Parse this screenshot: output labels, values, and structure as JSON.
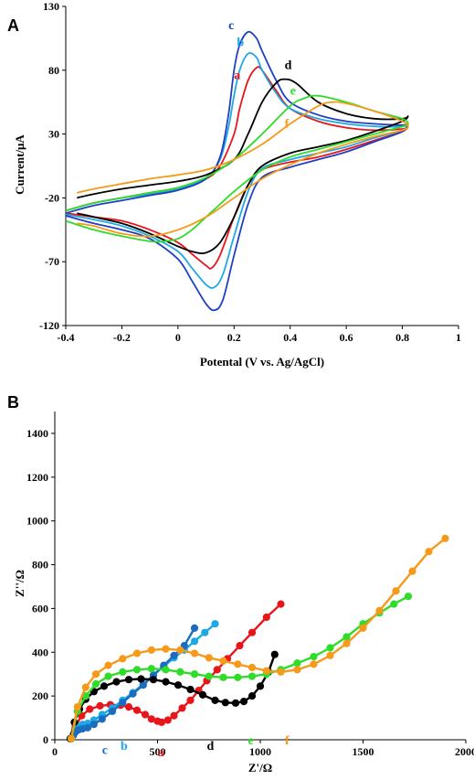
{
  "chart_data": [
    {
      "type": "line",
      "panel": "A",
      "title": "",
      "xlabel": "Potental (V vs. Ag/AgCl)",
      "ylabel": "Current/μA",
      "xlim": [
        -0.4,
        1
      ],
      "ylim": [
        -120,
        130
      ],
      "xticks": [
        -0.4,
        -0.2,
        0,
        0.2,
        0.4,
        0.6,
        0.8,
        1
      ],
      "yticks": [
        -120,
        -70,
        -20,
        30,
        80,
        130
      ],
      "grid": false,
      "legend": "inline curve labels",
      "series": [
        {
          "name": "a",
          "color": "#e8161b",
          "x": [
            -0.4,
            -0.3,
            -0.2,
            -0.1,
            0,
            0.1,
            0.15,
            0.2,
            0.22,
            0.25,
            0.28,
            0.3,
            0.35,
            0.4,
            0.5,
            0.6,
            0.7,
            0.8,
            0.82,
            0.8,
            0.7,
            0.6,
            0.5,
            0.4,
            0.3,
            0.25,
            0.2,
            0.15,
            0.12,
            0.1,
            0.05,
            0,
            -0.1,
            -0.2,
            -0.3,
            -0.4
          ],
          "y": [
            -30,
            -24,
            -20,
            -16,
            -12,
            -5,
            5,
            30,
            50,
            72,
            82,
            80,
            64,
            50,
            40,
            35,
            33,
            34,
            36,
            32,
            25,
            18,
            12,
            8,
            2,
            -10,
            -35,
            -65,
            -75,
            -73,
            -64,
            -55,
            -45,
            -38,
            -35,
            -32
          ]
        },
        {
          "name": "b",
          "color": "#1ea8e4",
          "x": [
            -0.4,
            -0.3,
            -0.2,
            -0.1,
            0,
            0.1,
            0.15,
            0.18,
            0.2,
            0.22,
            0.25,
            0.28,
            0.3,
            0.35,
            0.4,
            0.5,
            0.6,
            0.7,
            0.8,
            0.82,
            0.8,
            0.7,
            0.6,
            0.5,
            0.4,
            0.3,
            0.25,
            0.2,
            0.16,
            0.13,
            0.1,
            0.05,
            0,
            -0.1,
            -0.2,
            -0.3,
            -0.4
          ],
          "y": [
            -30,
            -24,
            -20,
            -17,
            -13,
            -4,
            10,
            35,
            60,
            80,
            93,
            90,
            80,
            62,
            50,
            42,
            38,
            36,
            36,
            38,
            33,
            27,
            20,
            15,
            10,
            3,
            -15,
            -50,
            -80,
            -90,
            -88,
            -75,
            -62,
            -50,
            -42,
            -37,
            -33
          ]
        },
        {
          "name": "c",
          "color": "#1f3fc4",
          "x": [
            -0.4,
            -0.3,
            -0.2,
            -0.1,
            0,
            0.1,
            0.15,
            0.18,
            0.2,
            0.22,
            0.25,
            0.28,
            0.3,
            0.35,
            0.4,
            0.5,
            0.6,
            0.7,
            0.8,
            0.82,
            0.8,
            0.7,
            0.6,
            0.5,
            0.4,
            0.3,
            0.25,
            0.2,
            0.16,
            0.13,
            0.1,
            0.05,
            0,
            -0.1,
            -0.2,
            -0.3,
            -0.4
          ],
          "y": [
            -32,
            -26,
            -22,
            -18,
            -14,
            -5,
            12,
            45,
            80,
            100,
            110,
            105,
            95,
            72,
            55,
            45,
            40,
            38,
            37,
            38,
            32,
            24,
            16,
            10,
            4,
            -4,
            -25,
            -65,
            -100,
            -108,
            -103,
            -85,
            -68,
            -52,
            -45,
            -40,
            -34
          ]
        },
        {
          "name": "d",
          "color": "#000000",
          "x": [
            -0.36,
            -0.3,
            -0.2,
            -0.1,
            0,
            0.1,
            0.2,
            0.25,
            0.3,
            0.35,
            0.38,
            0.42,
            0.5,
            0.6,
            0.7,
            0.8,
            0.82,
            0.8,
            0.7,
            0.6,
            0.5,
            0.4,
            0.3,
            0.25,
            0.2,
            0.15,
            0.1,
            0.05,
            0,
            -0.1,
            -0.2,
            -0.3,
            -0.36
          ],
          "y": [
            -20,
            -17,
            -13,
            -10,
            -7,
            -2,
            10,
            30,
            55,
            70,
            73,
            70,
            55,
            46,
            42,
            42,
            44,
            40,
            32,
            25,
            20,
            15,
            5,
            -10,
            -35,
            -55,
            -63,
            -62,
            -58,
            -48,
            -40,
            -35,
            -32
          ]
        },
        {
          "name": "e",
          "color": "#2fdc2a",
          "x": [
            -0.4,
            -0.3,
            -0.2,
            -0.1,
            0,
            0.1,
            0.2,
            0.3,
            0.4,
            0.45,
            0.5,
            0.6,
            0.7,
            0.8,
            0.82,
            0.8,
            0.7,
            0.6,
            0.5,
            0.4,
            0.3,
            0.2,
            0.15,
            0.1,
            0.05,
            0,
            -0.05,
            -0.1,
            -0.2,
            -0.3,
            -0.4
          ],
          "y": [
            -30,
            -24,
            -20,
            -16,
            -12,
            -4,
            10,
            30,
            52,
            58,
            60,
            55,
            48,
            42,
            38,
            36,
            30,
            24,
            18,
            12,
            2,
            -15,
            -25,
            -35,
            -45,
            -52,
            -54,
            -54,
            -50,
            -45,
            -38
          ]
        },
        {
          "name": "f",
          "color": "#f59a19",
          "x": [
            -0.36,
            -0.3,
            -0.2,
            -0.1,
            0,
            0.1,
            0.2,
            0.3,
            0.4,
            0.5,
            0.55,
            0.6,
            0.7,
            0.8,
            0.82,
            0.8,
            0.7,
            0.6,
            0.5,
            0.4,
            0.3,
            0.2,
            0.1,
            0,
            -0.1,
            -0.2,
            -0.3,
            -0.36
          ],
          "y": [
            -16,
            -13,
            -9,
            -5,
            -2,
            2,
            10,
            22,
            38,
            52,
            55,
            54,
            48,
            40,
            36,
            33,
            28,
            22,
            15,
            6,
            -5,
            -20,
            -35,
            -45,
            -50,
            -48,
            -42,
            -40
          ]
        }
      ]
    },
    {
      "type": "line",
      "panel": "B",
      "title": "",
      "xlabel": "Z'/Ω",
      "ylabel": "Z''/Ω",
      "xlim": [
        0,
        2000
      ],
      "ylim": [
        0,
        1500
      ],
      "xticks": [
        0,
        500,
        1000,
        1500,
        2000
      ],
      "yticks": [
        0,
        200,
        400,
        600,
        800,
        1000,
        1200,
        1400
      ],
      "grid": false,
      "legend": "inline curve labels",
      "series": [
        {
          "name": "a",
          "color": "#e8161b",
          "x": [
            80,
            100,
            130,
            170,
            220,
            270,
            320,
            360,
            400,
            440,
            470,
            500,
            520,
            550,
            580,
            620,
            660,
            700,
            740,
            790,
            840,
            900,
            960,
            1030,
            1100
          ],
          "y": [
            5,
            60,
            110,
            140,
            155,
            160,
            158,
            150,
            135,
            115,
            95,
            85,
            80,
            90,
            110,
            145,
            180,
            225,
            270,
            320,
            370,
            430,
            490,
            560,
            620
          ]
        },
        {
          "name": "b",
          "color": "#1ea8e4",
          "x": [
            80,
            90,
            100,
            115,
            135,
            160,
            190,
            230,
            280,
            330,
            380,
            430,
            480,
            530,
            580,
            630,
            680,
            730,
            780
          ],
          "y": [
            5,
            25,
            45,
            60,
            70,
            75,
            90,
            115,
            145,
            180,
            215,
            255,
            295,
            335,
            375,
            410,
            450,
            490,
            530
          ]
        },
        {
          "name": "c",
          "color": "#1a6cc0",
          "x": [
            80,
            90,
            100,
            115,
            135,
            160,
            190,
            230,
            280,
            330,
            380,
            430,
            480,
            530,
            580,
            630,
            680
          ],
          "y": [
            5,
            20,
            35,
            45,
            50,
            55,
            70,
            95,
            130,
            170,
            210,
            250,
            295,
            340,
            385,
            430,
            510
          ]
        },
        {
          "name": "d",
          "color": "#000000",
          "x": [
            75,
            95,
            120,
            150,
            190,
            240,
            300,
            360,
            420,
            480,
            540,
            600,
            660,
            720,
            780,
            830,
            880,
            920,
            960,
            1000,
            1040,
            1070
          ],
          "y": [
            5,
            80,
            140,
            185,
            220,
            245,
            265,
            275,
            278,
            275,
            265,
            250,
            230,
            205,
            180,
            170,
            168,
            175,
            200,
            245,
            310,
            390
          ]
        },
        {
          "name": "e",
          "color": "#2fdc2a",
          "x": [
            80,
            110,
            150,
            200,
            260,
            330,
            400,
            470,
            540,
            610,
            680,
            750,
            820,
            890,
            960,
            1030,
            1100,
            1180,
            1260,
            1340,
            1420,
            1500,
            1580,
            1650,
            1720
          ],
          "y": [
            5,
            130,
            200,
            255,
            290,
            310,
            320,
            325,
            320,
            310,
            300,
            290,
            285,
            285,
            290,
            300,
            320,
            350,
            380,
            420,
            470,
            530,
            580,
            620,
            655
          ]
        },
        {
          "name": "f",
          "color": "#f59a19",
          "x": [
            80,
            110,
            150,
            200,
            260,
            330,
            400,
            470,
            540,
            610,
            680,
            750,
            820,
            890,
            960,
            1030,
            1100,
            1180,
            1260,
            1340,
            1420,
            1500,
            1580,
            1660,
            1740,
            1820,
            1900
          ],
          "y": [
            5,
            150,
            240,
            300,
            340,
            370,
            395,
            410,
            415,
            410,
            395,
            375,
            360,
            345,
            330,
            315,
            310,
            320,
            345,
            385,
            440,
            510,
            590,
            680,
            770,
            860,
            920
          ]
        }
      ]
    }
  ]
}
